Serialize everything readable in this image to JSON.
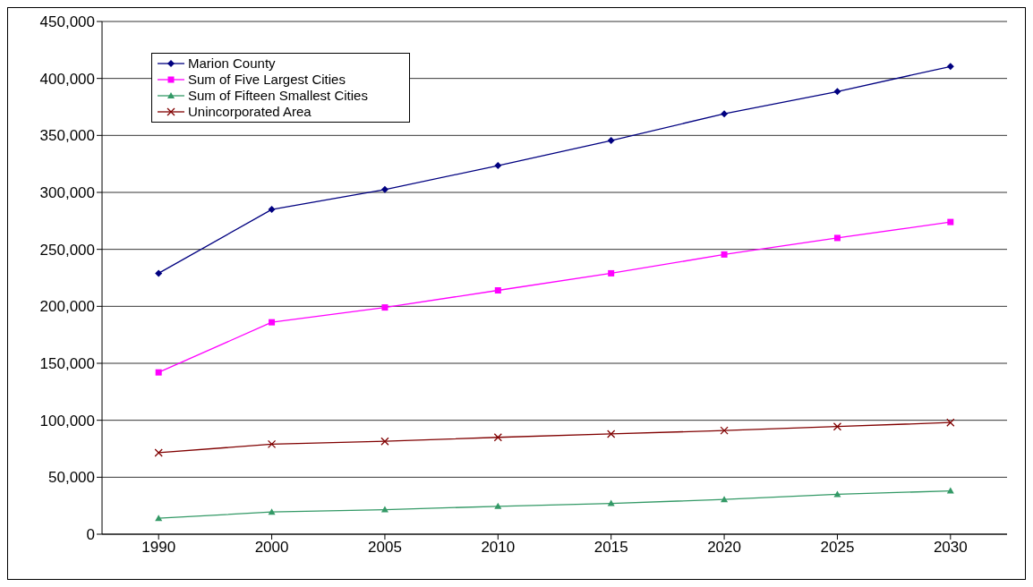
{
  "chart_data": {
    "type": "line",
    "categories": [
      "1990",
      "2000",
      "2005",
      "2010",
      "2015",
      "2020",
      "2025",
      "2030"
    ],
    "series": [
      {
        "name": "Marion County",
        "color": "#000080",
        "marker": "diamond",
        "values": [
          229000,
          285000,
          302500,
          323500,
          345500,
          369000,
          388500,
          410500
        ]
      },
      {
        "name": "Sum of Five Largest Cities",
        "color": "#ff00ff",
        "marker": "square",
        "values": [
          142000,
          186000,
          199000,
          214000,
          229000,
          245500,
          260000,
          274000
        ]
      },
      {
        "name": "Sum of Fifteen Smallest Cities",
        "color": "#339966",
        "marker": "triangle",
        "values": [
          14000,
          19500,
          21500,
          24500,
          27000,
          30500,
          35000,
          38000
        ]
      },
      {
        "name": "Unincorporated Area",
        "color": "#800000",
        "marker": "cross",
        "values": [
          71500,
          79000,
          81500,
          85000,
          88000,
          91000,
          94500,
          98000
        ]
      }
    ],
    "ylim": [
      0,
      450000
    ],
    "yticks": [
      0,
      {
        "value": 50000,
        "label": "50,000"
      },
      {
        "value": 100000,
        "label": "100,000"
      },
      {
        "value": 150000,
        "label": "150,000"
      },
      {
        "value": 200000,
        "label": "200,000"
      },
      {
        "value": 250000,
        "label": "250,000"
      },
      {
        "value": 300000,
        "label": "300,000"
      },
      {
        "value": 350000,
        "label": "350,000"
      },
      {
        "value": 400000,
        "label": "400,000"
      },
      {
        "value": 450000,
        "label": "450,000"
      }
    ],
    "grid": "y",
    "legend": "top left"
  }
}
